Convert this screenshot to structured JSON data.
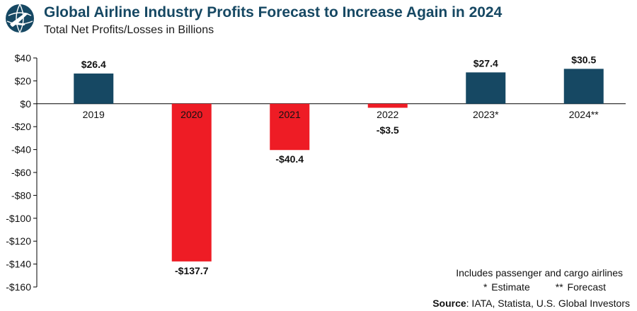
{
  "header": {
    "title": "Global Airline Industry Profits Forecast to Increase Again in 2024",
    "subtitle": "Total Net Profits/Losses in Billions"
  },
  "notes": {
    "line1": "Includes passenger and cargo airlines",
    "estimate": "* Estimate",
    "forecast": "** Forecast"
  },
  "source": {
    "label": "Source",
    "text": ": IATA, Statista, U.S. Global Investors"
  },
  "colors": {
    "positive": "#164863",
    "negative": "#ee1c25",
    "title": "#164863"
  },
  "chart_data": {
    "type": "bar",
    "title": "Global Airline Industry Profits Forecast to Increase Again in 2024",
    "subtitle": "Total Net Profits/Losses in Billions",
    "categories": [
      "2019",
      "2020",
      "2021",
      "2022",
      "2023*",
      "2024**"
    ],
    "values": [
      26.4,
      -137.7,
      -40.4,
      -3.5,
      27.4,
      30.5
    ],
    "data_labels": [
      "$26.4",
      "-$137.7",
      "-$40.4",
      "-$3.5",
      "$27.4",
      "$30.5"
    ],
    "ylim": [
      -160,
      40
    ],
    "yticks": [
      40,
      20,
      0,
      -20,
      -40,
      -60,
      -80,
      -100,
      -120,
      -140,
      -160
    ],
    "ytick_labels": [
      "$40",
      "$20",
      "$0",
      "-$20",
      "-$40",
      "-$60",
      "-$80",
      "-$100",
      "-$120",
      "-$140",
      "-$160"
    ],
    "xlabel": "",
    "ylabel": "",
    "grid": false,
    "legend": "none"
  }
}
